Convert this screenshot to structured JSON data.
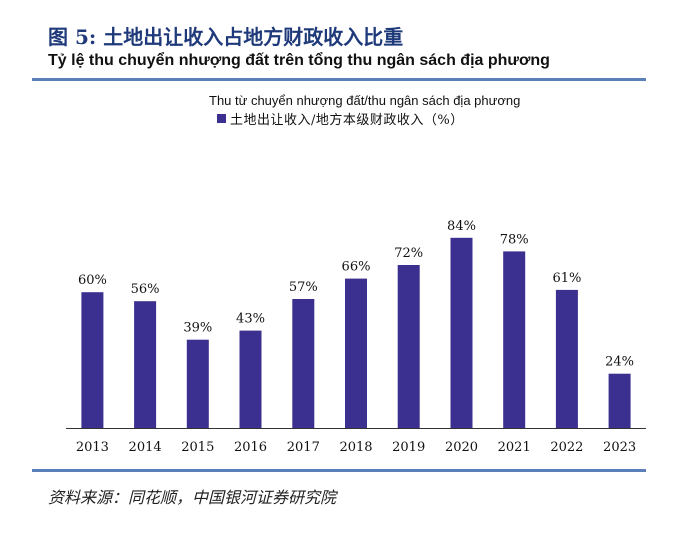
{
  "header": {
    "title": "图 5:  土地出让收入占地方财政收入比重",
    "subtitle": "Tỷ lệ thu chuyển nhượng đất trên tổng thu ngân sách địa phương"
  },
  "legend": {
    "caption": "Thu từ chuyển nhượng đất/thu ngân sách địa phương",
    "series_label": "土地出让收入/地方本级财政收入（%）"
  },
  "source": "资料来源：同花顺，中国银河证券研究院",
  "colors": {
    "bar": "#3b2f8f",
    "rule": "#5b7fb8",
    "title": "#1f3a7a"
  },
  "chart_data": {
    "type": "bar",
    "categories": [
      "2013",
      "2014",
      "2015",
      "2016",
      "2017",
      "2018",
      "2019",
      "2020",
      "2021",
      "2022",
      "2023"
    ],
    "series": [
      {
        "name": "土地出让收入/地方本级财政收入（%）",
        "values": [
          60,
          56,
          39,
          43,
          57,
          66,
          72,
          84,
          78,
          61,
          24
        ]
      }
    ],
    "data_labels": [
      "60%",
      "56%",
      "39%",
      "43%",
      "57%",
      "66%",
      "72%",
      "84%",
      "78%",
      "61%",
      "24%"
    ],
    "ylim": [
      0,
      100
    ],
    "grid": false,
    "legend_position": "top-center"
  }
}
